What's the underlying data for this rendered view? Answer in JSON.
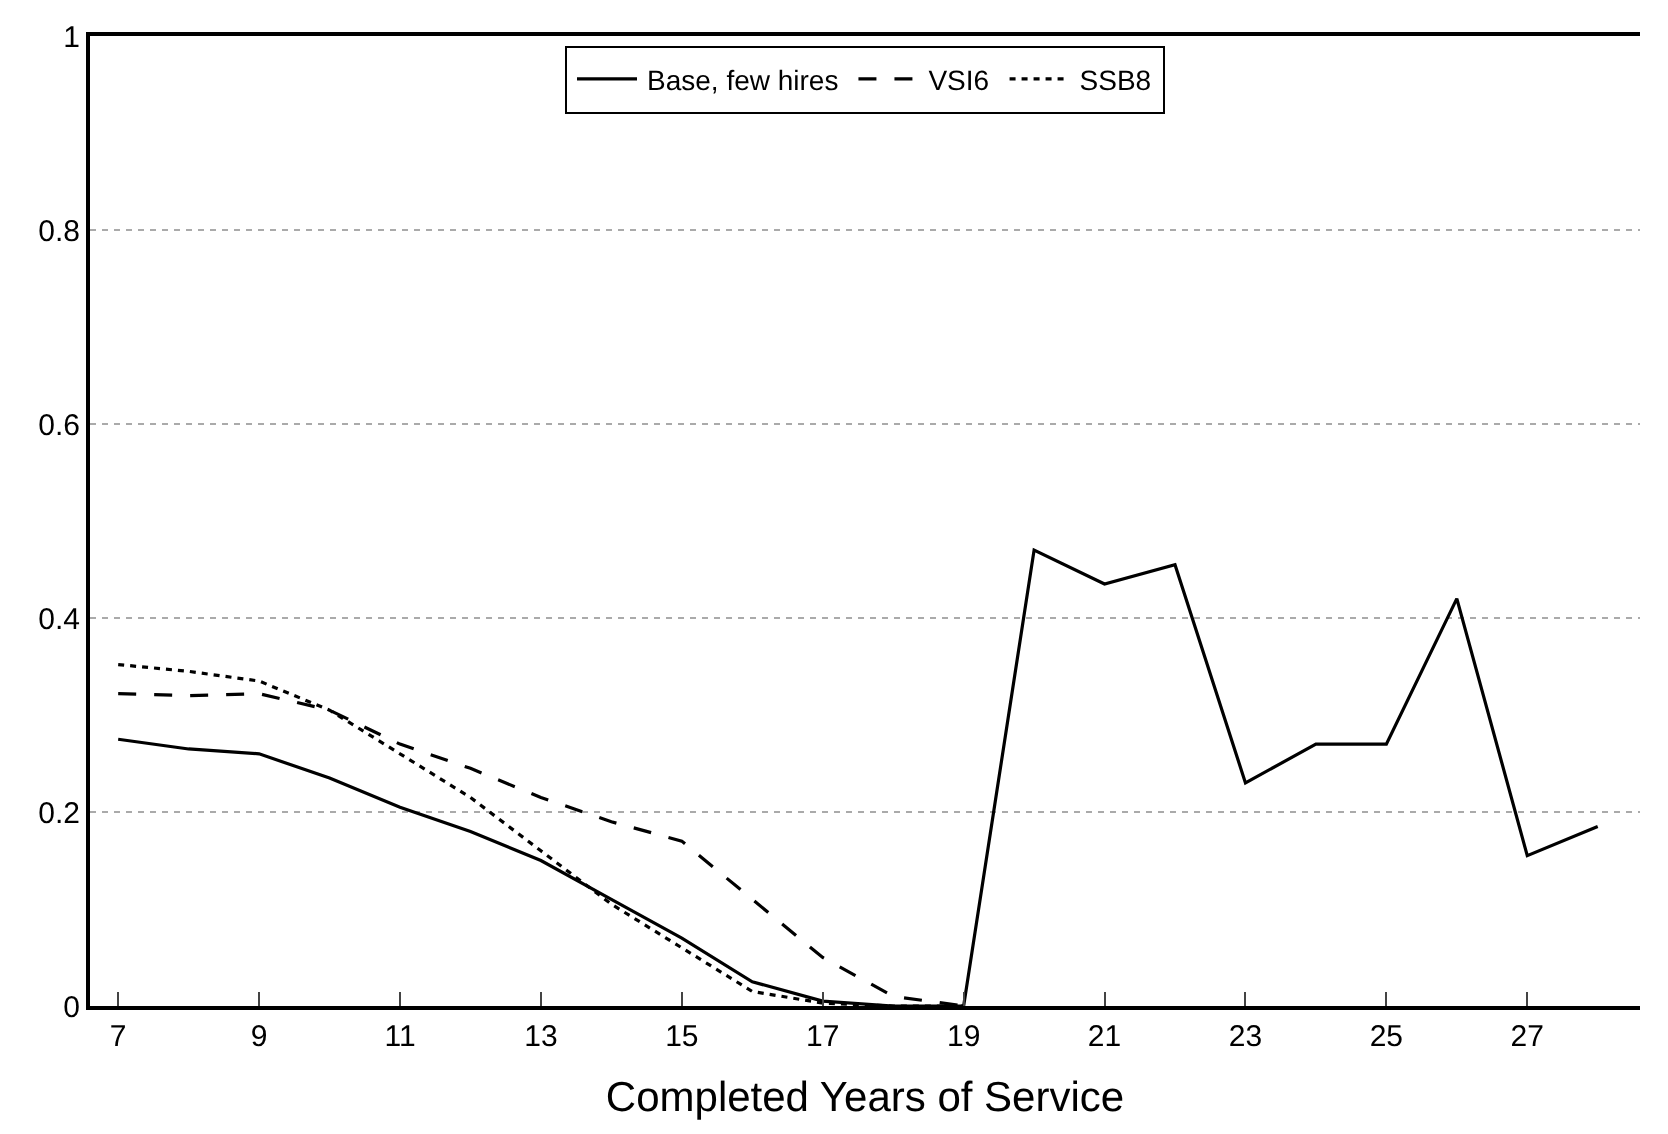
{
  "chart_data": {
    "type": "line",
    "xlabel": "Completed Years of Service",
    "xlim": [
      6.6,
      28.6
    ],
    "xticks": [
      7,
      9,
      11,
      13,
      15,
      17,
      19,
      21,
      23,
      25,
      27
    ],
    "ylim": [
      0,
      1
    ],
    "yticks": [
      0,
      0.2,
      0.4,
      0.6,
      0.8,
      1
    ],
    "grid": "y",
    "legend": "top",
    "marker": "none",
    "series": [
      {
        "name": "Base, few hires",
        "color": "#000000",
        "line_style": "solid",
        "x": [
          7,
          8,
          9,
          10,
          11,
          12,
          13,
          14,
          15,
          16,
          17,
          18,
          19,
          20,
          21,
          22,
          23,
          24,
          25,
          26,
          27,
          28
        ],
        "values": [
          0.275,
          0.265,
          0.26,
          0.235,
          0.205,
          0.18,
          0.15,
          0.11,
          0.07,
          0.025,
          0.005,
          0,
          0,
          0.47,
          0.435,
          0.455,
          0.23,
          0.27,
          0.27,
          0.42,
          0.155,
          0.185
        ]
      },
      {
        "name": "VSI6",
        "color": "#000000",
        "line_style": "dashed",
        "x": [
          7,
          8,
          9,
          10,
          11,
          12,
          13,
          14,
          15,
          16,
          17,
          18,
          19
        ],
        "values": [
          0.322,
          0.32,
          0.322,
          0.305,
          0.27,
          0.245,
          0.215,
          0.19,
          0.17,
          0.11,
          0.05,
          0.01,
          0
        ]
      },
      {
        "name": "SSB8",
        "color": "#000000",
        "line_style": "dotted",
        "x": [
          7,
          8,
          9,
          10,
          11,
          12,
          13,
          14,
          15,
          16,
          17,
          18,
          19
        ],
        "values": [
          0.352,
          0.345,
          0.335,
          0.305,
          0.26,
          0.215,
          0.16,
          0.105,
          0.06,
          0.015,
          0.003,
          0,
          0
        ]
      }
    ]
  }
}
